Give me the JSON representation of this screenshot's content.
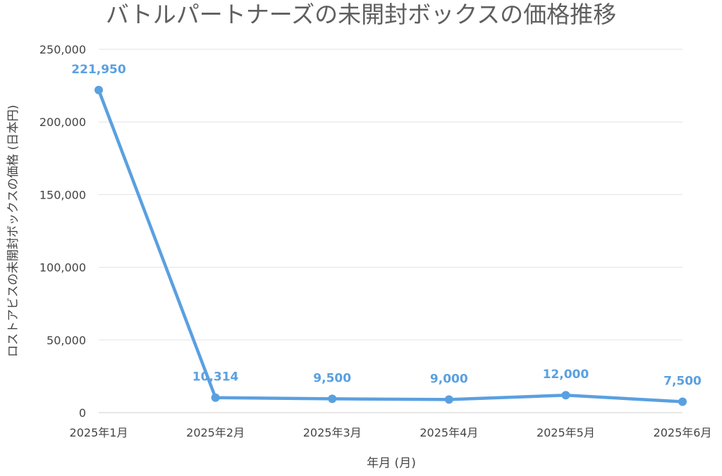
{
  "chart_data": {
    "type": "line",
    "title": "バトルパートナーズの未開封ボックスの価格推移",
    "xlabel": "年月 (月)",
    "ylabel": "ロストアビスの未開封ボックスの価格 (日本円)",
    "categories": [
      "2025年1月",
      "2025年2月",
      "2025年3月",
      "2025年4月",
      "2025年5月",
      "2025年6月"
    ],
    "series": [
      {
        "values": [
          221950,
          10314,
          9500,
          9000,
          12000,
          7500
        ],
        "data_labels": [
          "221,950",
          "10,314",
          "9,500",
          "9,000",
          "12,000",
          "7,500"
        ],
        "color": "#5aa0e0"
      }
    ],
    "ylim": [
      0,
      250000
    ],
    "yticks": [
      0,
      50000,
      100000,
      150000,
      200000,
      250000
    ],
    "ytick_labels": [
      "0",
      "50,000",
      "100,000",
      "150,000",
      "200,000",
      "250,000"
    ],
    "grid": true,
    "legend": "none"
  }
}
